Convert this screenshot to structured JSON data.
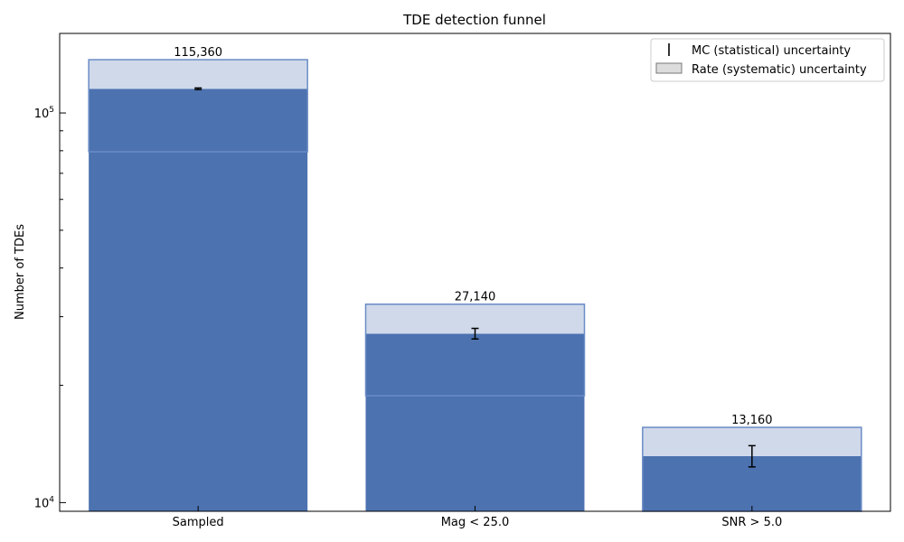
{
  "chart_data": {
    "type": "bar",
    "title": "TDE detection funnel",
    "xlabel": "",
    "ylabel": "Number of TDEs",
    "yscale": "log",
    "ylim": [
      9500,
      160000
    ],
    "ytick_labels": [
      {
        "value": 100000,
        "base": "10",
        "exp": "5"
      },
      {
        "value": 10000,
        "base": "10",
        "exp": "4"
      }
    ],
    "categories": [
      "Sampled",
      "Mag < 25.0",
      "SNR > 5.0"
    ],
    "values": [
      115360,
      27140,
      13160
    ],
    "value_labels": [
      "115,360",
      "27,140",
      "13,160"
    ],
    "systematic_band": [
      {
        "low": 79500,
        "high": 137000
      },
      {
        "low": 18800,
        "high": 32300
      },
      {
        "low": 9500,
        "high": 15600
      }
    ],
    "mc_error": [
      {
        "low": 114800,
        "high": 115900
      },
      {
        "low": 26300,
        "high": 28000
      },
      {
        "low": 12350,
        "high": 14000
      }
    ],
    "legend": {
      "position": "top-right",
      "entries": [
        {
          "label": "MC (statistical) uncertainty",
          "kind": "errorbar"
        },
        {
          "label": "Rate (systematic) uncertainty",
          "kind": "patch"
        }
      ]
    },
    "colors": {
      "bar": "#4c72b0",
      "band_fill": "#d0d9ea",
      "band_edge": "#6b8cc6",
      "legend_patch": "#dcdcdc",
      "errorbar": "#000000"
    }
  }
}
